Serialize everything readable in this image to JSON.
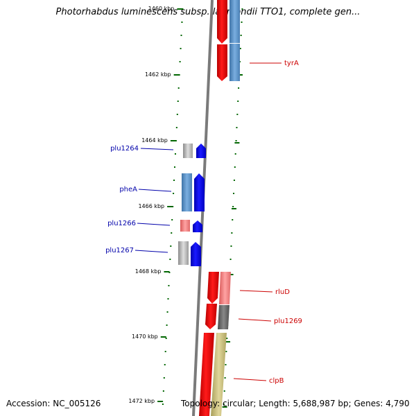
{
  "title": "Photorhabdus luminescens subsp. laumondii TTO1, complete gen...",
  "accession": "Accession: NC_005126",
  "topology": "Topology: circular; Length: 5,688,987 bp; Genes: 4,790",
  "ruler_labels": [
    "1460 kbp",
    "1462 kbp",
    "1464 kbp",
    "1466 kbp",
    "1468 kbp",
    "1470 kbp",
    "1472 kbp"
  ],
  "genes": [
    {
      "name": "tyrA",
      "strand": "+",
      "color": "#cc0000"
    },
    {
      "name": "plu1264",
      "strand": "-",
      "color": "#0000aa"
    },
    {
      "name": "pheA",
      "strand": "-",
      "color": "#0000aa"
    },
    {
      "name": "plu1266",
      "strand": "-",
      "color": "#0000aa"
    },
    {
      "name": "plu1267",
      "strand": "-",
      "color": "#0000aa"
    },
    {
      "name": "rluD",
      "strand": "+",
      "color": "#cc0000"
    },
    {
      "name": "plu1269",
      "strand": "+",
      "color": "#cc0000"
    },
    {
      "name": "clpB",
      "strand": "+",
      "color": "#cc0000"
    }
  ],
  "colors": {
    "forward_strand": "#ff0000",
    "reverse_strand": "#0000ff",
    "backbone": "#808080",
    "ruler": "#006600"
  }
}
